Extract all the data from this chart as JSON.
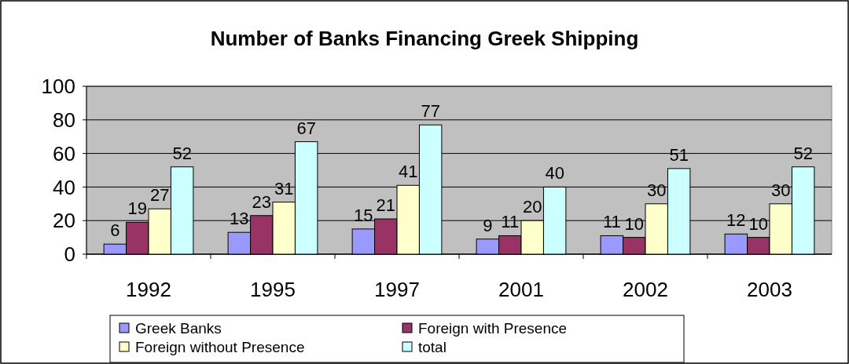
{
  "chart_data": {
    "type": "bar",
    "title": "Number of Banks Financing Greek Shipping",
    "categories": [
      "1992",
      "1995",
      "1997",
      "2001",
      "2002",
      "2003"
    ],
    "series": [
      {
        "name": "Greek Banks",
        "color": "#9999ff",
        "values": [
          6,
          13,
          15,
          9,
          11,
          12
        ]
      },
      {
        "name": "Foreign with Presence",
        "color": "#993366",
        "values": [
          19,
          23,
          21,
          11,
          10,
          10
        ]
      },
      {
        "name": "Foreign without Presence",
        "color": "#ffffcc",
        "values": [
          27,
          31,
          41,
          20,
          30,
          30
        ]
      },
      {
        "name": "total",
        "color": "#ccffff",
        "values": [
          52,
          67,
          77,
          40,
          51,
          52
        ]
      }
    ],
    "ylim": [
      0,
      100
    ],
    "yticks": [
      0,
      20,
      40,
      60,
      80,
      100
    ],
    "grid": "y",
    "legend": "bottom",
    "data_labels": true
  }
}
